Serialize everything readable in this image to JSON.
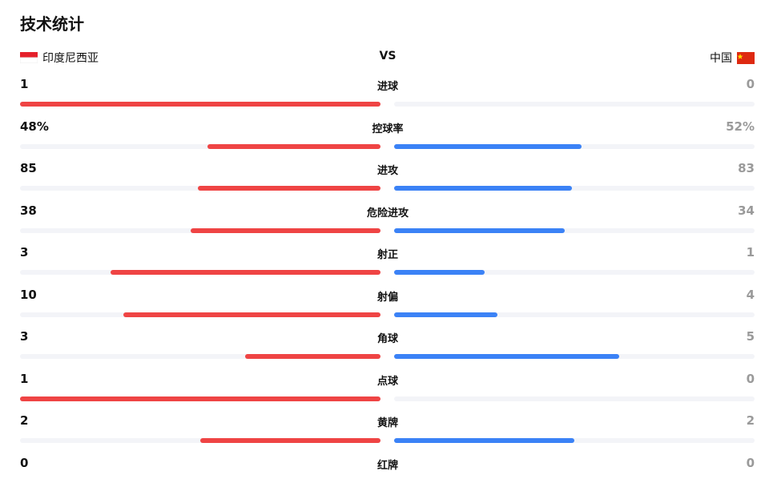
{
  "header": {
    "title": "技术统计",
    "home_team": "印度尼西亚",
    "versus": "VS",
    "away_team": "中国"
  },
  "colors": {
    "home": "#ef4444",
    "away": "#3b82f6",
    "track": "#f3f4f8"
  },
  "rows": [
    {
      "label": "进球",
      "home": 1,
      "away": 0
    },
    {
      "label": "控球率",
      "home": 48,
      "away": 52,
      "home_label": "48%",
      "away_label": "52%"
    },
    {
      "label": "进攻",
      "home": 85,
      "away": 83
    },
    {
      "label": "危险进攻",
      "home": 38,
      "away": 34
    },
    {
      "label": "射正",
      "home": 3,
      "away": 1
    },
    {
      "label": "射偏",
      "home": 10,
      "away": 4
    },
    {
      "label": "角球",
      "home": 3,
      "away": 5
    },
    {
      "label": "点球",
      "home": 1,
      "away": 0
    },
    {
      "label": "黄牌",
      "home": 2,
      "away": 2
    },
    {
      "label": "红牌",
      "home": 0,
      "away": 0
    }
  ]
}
